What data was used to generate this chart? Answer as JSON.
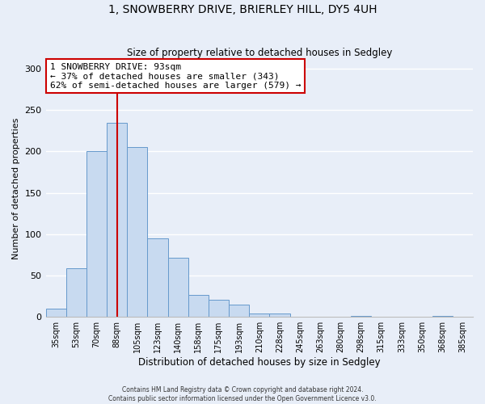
{
  "title": "1, SNOWBERRY DRIVE, BRIERLEY HILL, DY5 4UH",
  "subtitle": "Size of property relative to detached houses in Sedgley",
  "xlabel": "Distribution of detached houses by size in Sedgley",
  "ylabel": "Number of detached properties",
  "bar_labels": [
    "35sqm",
    "53sqm",
    "70sqm",
    "88sqm",
    "105sqm",
    "123sqm",
    "140sqm",
    "158sqm",
    "175sqm",
    "193sqm",
    "210sqm",
    "228sqm",
    "245sqm",
    "263sqm",
    "280sqm",
    "298sqm",
    "315sqm",
    "333sqm",
    "350sqm",
    "368sqm",
    "385sqm"
  ],
  "bar_values": [
    10,
    59,
    200,
    234,
    205,
    95,
    71,
    27,
    21,
    15,
    4,
    4,
    0,
    0,
    0,
    1,
    0,
    0,
    0,
    1,
    0
  ],
  "bar_color": "#c8daf0",
  "bar_edge_color": "#6699cc",
  "ylim": [
    0,
    310
  ],
  "yticks": [
    0,
    50,
    100,
    150,
    200,
    250,
    300
  ],
  "vline_x": 3,
  "vline_color": "#cc0000",
  "annotation_line1": "1 SNOWBERRY DRIVE: 93sqm",
  "annotation_line2": "← 37% of detached houses are smaller (343)",
  "annotation_line3": "62% of semi-detached houses are larger (579) →",
  "annotation_box_color": "#ffffff",
  "annotation_box_edge": "#cc0000",
  "footer_line1": "Contains HM Land Registry data © Crown copyright and database right 2024.",
  "footer_line2": "Contains public sector information licensed under the Open Government Licence v3.0.",
  "background_color": "#e8eef8",
  "plot_bg_color": "#e8eef8",
  "grid_color": "#ffffff",
  "figsize": [
    6.0,
    5.0
  ],
  "dpi": 100
}
